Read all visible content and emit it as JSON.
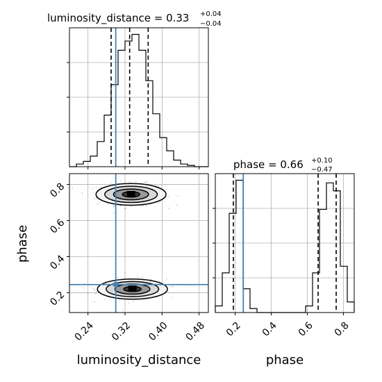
{
  "chart_data": [
    {
      "type": "histogram",
      "panel": "luminosity_distance marginal",
      "title_param": "luminosity_distance",
      "title_value": "0.33",
      "title_plus": "+0.04",
      "title_minus": "−0.04",
      "x_param": "luminosity_distance",
      "xlim": [
        0.2,
        0.5
      ],
      "bin_edges": [
        0.2,
        0.215,
        0.23,
        0.245,
        0.26,
        0.275,
        0.29,
        0.305,
        0.32,
        0.335,
        0.35,
        0.365,
        0.38,
        0.395,
        0.41,
        0.425,
        0.44,
        0.455,
        0.47,
        0.485,
        0.5
      ],
      "counts": [
        0,
        0.02,
        0.04,
        0.08,
        0.19,
        0.39,
        0.62,
        0.88,
        0.95,
        1.0,
        0.88,
        0.65,
        0.4,
        0.22,
        0.12,
        0.05,
        0.02,
        0.01,
        0,
        0
      ],
      "quantile_lines": [
        0.29,
        0.33,
        0.37
      ],
      "truth": 0.3
    },
    {
      "type": "histogram",
      "panel": "phase marginal",
      "title_param": "phase",
      "title_value": "0.66",
      "title_plus": "+0.10",
      "title_minus": "−0.47",
      "x_param": "phase",
      "xlim": [
        0.09,
        0.86
      ],
      "bin_edges": [
        0.09,
        0.1285,
        0.167,
        0.2055,
        0.244,
        0.2825,
        0.321,
        0.3595,
        0.398,
        0.4365,
        0.475,
        0.5135,
        0.552,
        0.5905,
        0.629,
        0.6675,
        0.706,
        0.7445,
        0.783,
        0.8215,
        0.86
      ],
      "counts": [
        0.05,
        0.3,
        0.75,
        1.0,
        0.18,
        0.03,
        0,
        0,
        0,
        0,
        0,
        0,
        0,
        0.05,
        0.3,
        0.78,
        0.98,
        0.92,
        0.35,
        0.08
      ],
      "quantile_lines": [
        0.19,
        0.66,
        0.76
      ],
      "truth": 0.245,
      "xticks": [
        0.2,
        0.4,
        0.6,
        0.8
      ],
      "xticklabels": [
        "0.2",
        "0.4",
        "0.6",
        "0.8"
      ],
      "xlabel": "phase"
    },
    {
      "type": "scatter",
      "panel": "luminosity_distance vs phase 2D",
      "xlim": [
        0.2,
        0.5
      ],
      "ylim": [
        0.09,
        0.86
      ],
      "xticks": [
        0.24,
        0.32,
        0.4,
        0.48
      ],
      "xticklabels": [
        "0.24",
        "0.32",
        "0.40",
        "0.48"
      ],
      "yticks": [
        0.2,
        0.4,
        0.6,
        0.8
      ],
      "yticklabels": [
        "0.2",
        "0.4",
        "0.6",
        "0.8"
      ],
      "xlabel": "luminosity_distance",
      "ylabel": "phase",
      "modes": [
        {
          "x": 0.333,
          "y": 0.745,
          "sx": 0.028,
          "sy": 0.03,
          "weight": 0.52
        },
        {
          "x": 0.336,
          "y": 0.22,
          "sx": 0.028,
          "sy": 0.028,
          "weight": 0.48
        }
      ],
      "truth": {
        "x": 0.3,
        "y": 0.245
      }
    }
  ],
  "style": {
    "hist_color": "#000000",
    "quantile_color": "#000000",
    "truth_color": "#4682b4",
    "grid_color": "#b0b0b0",
    "point_color": "#a0a0a0"
  }
}
